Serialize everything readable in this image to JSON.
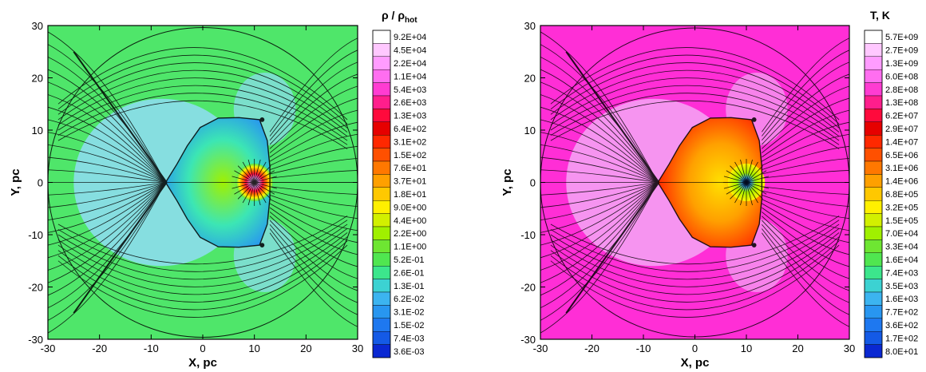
{
  "chart_data": [
    {
      "type": "heatmap",
      "panel": "density",
      "xlabel": "X, pc",
      "ylabel": "Y, pc",
      "xlim": [
        -30,
        30
      ],
      "ylim": [
        -30,
        30
      ],
      "x_ticks": [
        -30,
        -20,
        -10,
        0,
        10,
        20,
        30
      ],
      "y_ticks": [
        -30,
        -20,
        -10,
        0,
        10,
        20,
        30
      ],
      "x_tick_labels": [
        "-30",
        "-20",
        "-10",
        "0",
        "10",
        "20",
        "30"
      ],
      "y_tick_labels": [
        "-30",
        "-20",
        "-10",
        "0",
        "10",
        "20",
        "30"
      ],
      "legend": {
        "title_main": "ρ / ρ",
        "title_sub": "hot",
        "placement": "right",
        "levels": [
          "9.2E+04",
          "4.5E+04",
          "2.2E+04",
          "1.1E+04",
          "5.4E+03",
          "2.6E+03",
          "1.3E+03",
          "6.4E+02",
          "3.1E+02",
          "1.5E+02",
          "7.6E+01",
          "3.7E+01",
          "1.8E+01",
          "9.0E+00",
          "4.4E+00",
          "2.2E+00",
          "1.1E+00",
          "5.2E-01",
          "2.6E-01",
          "1.3E-01",
          "6.2E-02",
          "3.1E-02",
          "1.5E-02",
          "7.4E-03",
          "3.6E-03"
        ],
        "colors": [
          "#ffffff",
          "#ffc8ff",
          "#ff9cff",
          "#ff6ef0",
          "#ff3cd2",
          "#ff1e8c",
          "#ff0a3c",
          "#e60000",
          "#ff2800",
          "#ff5000",
          "#ff7800",
          "#ffa000",
          "#ffc800",
          "#fff000",
          "#d2f000",
          "#a0f000",
          "#6ee632",
          "#50e650",
          "#3ce68c",
          "#3cd2d2",
          "#3cb4f0",
          "#2896f0",
          "#1e78f0",
          "#145ae6",
          "#0a28d2"
        ]
      },
      "background_color": "#4fe66a",
      "inner_region_color": "#8fdcf5",
      "bubble_color": "#62c7ef"
    },
    {
      "type": "heatmap",
      "panel": "temperature",
      "xlabel": "X, pc",
      "ylabel": "Y, pc",
      "xlim": [
        -30,
        30
      ],
      "ylim": [
        -30,
        30
      ],
      "x_ticks": [
        -30,
        -20,
        -10,
        0,
        10,
        20,
        30
      ],
      "y_ticks": [
        -30,
        -20,
        -10,
        0,
        10,
        20,
        30
      ],
      "x_tick_labels": [
        "-30",
        "-20",
        "-10",
        "0",
        "10",
        "20",
        "30"
      ],
      "y_tick_labels": [
        "-30",
        "-20",
        "-10",
        "0",
        "10",
        "20",
        "30"
      ],
      "legend": {
        "title_main": "T, K",
        "title_sub": "",
        "placement": "right",
        "levels": [
          "5.7E+09",
          "2.7E+09",
          "1.3E+09",
          "6.0E+08",
          "2.8E+08",
          "1.3E+08",
          "6.2E+07",
          "2.9E+07",
          "1.4E+07",
          "6.5E+06",
          "3.1E+06",
          "1.4E+06",
          "6.8E+05",
          "3.2E+05",
          "1.5E+05",
          "7.0E+04",
          "3.3E+04",
          "1.6E+04",
          "7.4E+03",
          "3.5E+03",
          "1.6E+03",
          "7.7E+02",
          "3.6E+02",
          "1.7E+02",
          "8.0E+01"
        ],
        "colors": [
          "#ffffff",
          "#ffc8ff",
          "#ff9cff",
          "#ff6ef0",
          "#ff3cd2",
          "#ff1e8c",
          "#ff0a3c",
          "#e60000",
          "#ff2800",
          "#ff5000",
          "#ff7800",
          "#ffa000",
          "#ffc800",
          "#fff000",
          "#d2f000",
          "#a0f000",
          "#6ee632",
          "#50e650",
          "#3ce68c",
          "#3cd2d2",
          "#3cb4f0",
          "#2896f0",
          "#1e78f0",
          "#145ae6",
          "#0a28d2"
        ]
      },
      "background_color": "#ff2ed6",
      "inner_region_color": "#f4a6f4",
      "bubble_color": "#ff9a20"
    }
  ]
}
